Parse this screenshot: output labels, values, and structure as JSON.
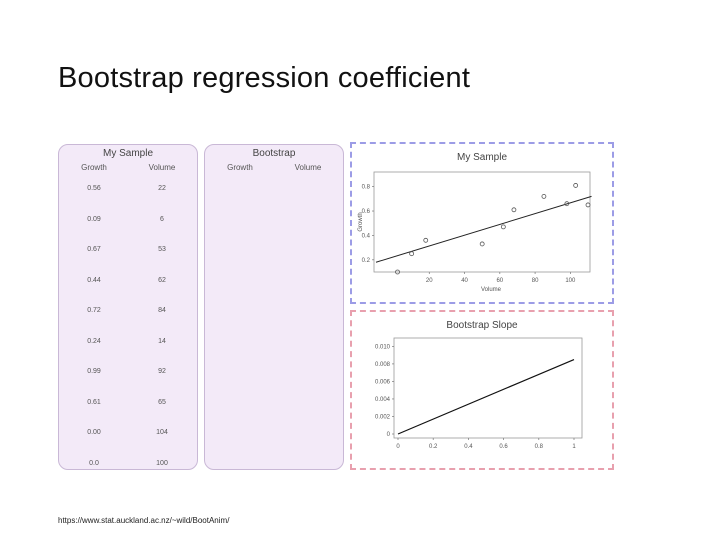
{
  "slide": {
    "title": "Bootstrap regression coefficient",
    "footer_url": "https://www.stat.auckland.ac.nz/~wild/BootAnim/"
  },
  "sample_table": {
    "title": "My Sample",
    "col1": "Growth",
    "col2": "Volume",
    "rows": [
      [
        "0.56",
        "22"
      ],
      [
        "0.09",
        "6"
      ],
      [
        "0.67",
        "53"
      ],
      [
        "0.44",
        "62"
      ],
      [
        "0.72",
        "84"
      ],
      [
        "0.24",
        "14"
      ],
      [
        "0.99",
        "92"
      ],
      [
        "0.61",
        "65"
      ],
      [
        "0.00",
        "104"
      ],
      [
        "0.0",
        "100"
      ]
    ]
  },
  "bootstrap_table": {
    "title": "Bootstrap",
    "col1": "Growth",
    "col2": "Volume"
  },
  "colors": {
    "panel_bg": "#f3eaf8",
    "scatter_border": "#9c9ce6",
    "slope_border": "#e8a0ae"
  },
  "chart_data": [
    {
      "type": "scatter",
      "title": "My Sample",
      "xlabel": "Volume",
      "ylabel": "Growth",
      "xlim": [
        0,
        110
      ],
      "ylim": [
        0.1,
        0.92
      ],
      "xticks": [
        "20",
        "40",
        "60",
        "80",
        "100"
      ],
      "xtick_values": [
        20,
        40,
        60,
        80,
        100
      ],
      "yticks": [
        "0.2",
        "0.4",
        "0.6",
        "0.8"
      ],
      "ytick_values": [
        0.2,
        0.4,
        0.6,
        0.8
      ],
      "points": [
        {
          "x": 2,
          "y": 0.1
        },
        {
          "x": 10,
          "y": 0.25
        },
        {
          "x": 18,
          "y": 0.36
        },
        {
          "x": 50,
          "y": 0.33
        },
        {
          "x": 62,
          "y": 0.47
        },
        {
          "x": 68,
          "y": 0.61
        },
        {
          "x": 85,
          "y": 0.72
        },
        {
          "x": 98,
          "y": 0.66
        },
        {
          "x": 103,
          "y": 0.81
        },
        {
          "x": 110,
          "y": 0.65
        }
      ],
      "fit_line": {
        "x": [
          0,
          112
        ],
        "y": [
          0.18,
          0.72
        ]
      }
    },
    {
      "type": "line",
      "title": "Bootstrap Slope",
      "xlim": [
        0,
        1
      ],
      "ylim": [
        0,
        0.0105
      ],
      "xticks": [
        "0",
        "0.2",
        "0.4",
        "0.6",
        "0.8",
        "1"
      ],
      "xtick_values": [
        0,
        0.2,
        0.4,
        0.6,
        0.8,
        1.0
      ],
      "yticks": [
        "0",
        "0.002",
        "0.004",
        "0.006",
        "0.008",
        "0.010"
      ],
      "ytick_values": [
        0,
        0.002,
        0.004,
        0.006,
        0.008,
        0.01
      ],
      "line": {
        "x": [
          0,
          1
        ],
        "y": [
          0,
          0.0085
        ]
      }
    }
  ]
}
